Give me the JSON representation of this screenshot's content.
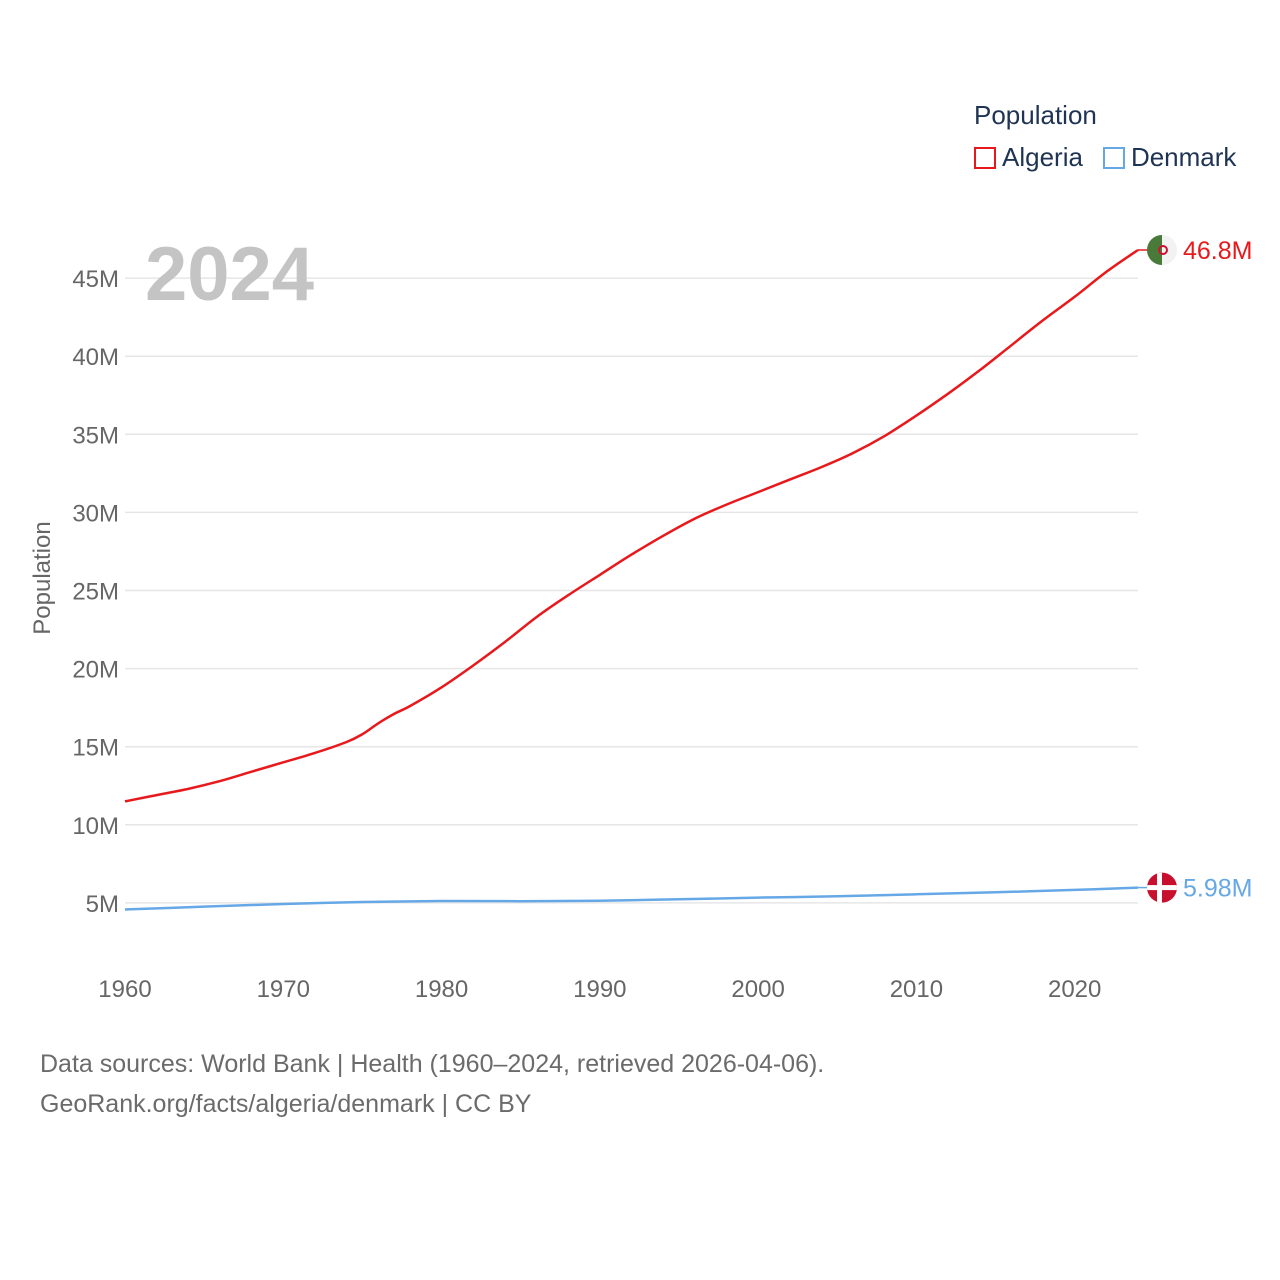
{
  "legend": {
    "title": "Population",
    "items": [
      {
        "name": "Algeria",
        "color": "#e8191c"
      },
      {
        "name": "Denmark",
        "color": "#66a8e6"
      }
    ]
  },
  "chart_data": {
    "type": "line",
    "title": "Population",
    "year_label": "2024",
    "ylabel": "Population",
    "xlabel": "",
    "xlim": [
      1960,
      2024
    ],
    "ylim": [
      0,
      50000000
    ],
    "x_ticks": [
      1960,
      1970,
      1980,
      1990,
      2000,
      2010,
      2020
    ],
    "x_tick_labels": [
      "1960",
      "1970",
      "1980",
      "1990",
      "2000",
      "2010",
      "2020"
    ],
    "y_ticks": [
      5000000,
      10000000,
      15000000,
      20000000,
      25000000,
      30000000,
      35000000,
      40000000,
      45000000
    ],
    "y_tick_labels": [
      "5M",
      "10M",
      "15M",
      "20M",
      "25M",
      "30M",
      "35M",
      "40M",
      "45M"
    ],
    "grid": true,
    "series": [
      {
        "name": "Algeria",
        "color": "#e8191c",
        "end_label": "46.8M",
        "flag": "algeria-flag",
        "x": [
          1960,
          1962,
          1964,
          1966,
          1968,
          1970,
          1972,
          1974,
          1975,
          1976,
          1977,
          1978,
          1980,
          1982,
          1984,
          1986,
          1988,
          1990,
          1992,
          1994,
          1996,
          1998,
          2000,
          2002,
          2004,
          2006,
          2008,
          2010,
          2012,
          2014,
          2016,
          2018,
          2020,
          2022,
          2024
        ],
        "values": [
          11500000,
          11900000,
          12300000,
          12800000,
          13400000,
          14000000,
          14600000,
          15300000,
          15800000,
          16500000,
          17100000,
          17600000,
          18800000,
          20200000,
          21700000,
          23300000,
          24700000,
          26000000,
          27300000,
          28500000,
          29600000,
          30500000,
          31300000,
          32100000,
          32900000,
          33800000,
          34900000,
          36200000,
          37600000,
          39100000,
          40700000,
          42300000,
          43800000,
          45400000,
          46800000
        ]
      },
      {
        "name": "Denmark",
        "color": "#66a8e6",
        "end_label": "5.98M",
        "flag": "denmark-flag",
        "x": [
          1960,
          1965,
          1970,
          1975,
          1980,
          1985,
          1990,
          1995,
          2000,
          2005,
          2010,
          2015,
          2020,
          2024
        ],
        "values": [
          4580000,
          4760000,
          4930000,
          5060000,
          5120000,
          5110000,
          5140000,
          5230000,
          5340000,
          5420000,
          5550000,
          5680000,
          5830000,
          5980000
        ]
      }
    ]
  },
  "footer": {
    "line1": "Data sources: World Bank | Health (1960–2024, retrieved 2026-04-06).",
    "line2": "GeoRank.org/facts/algeria/denmark | CC BY"
  }
}
